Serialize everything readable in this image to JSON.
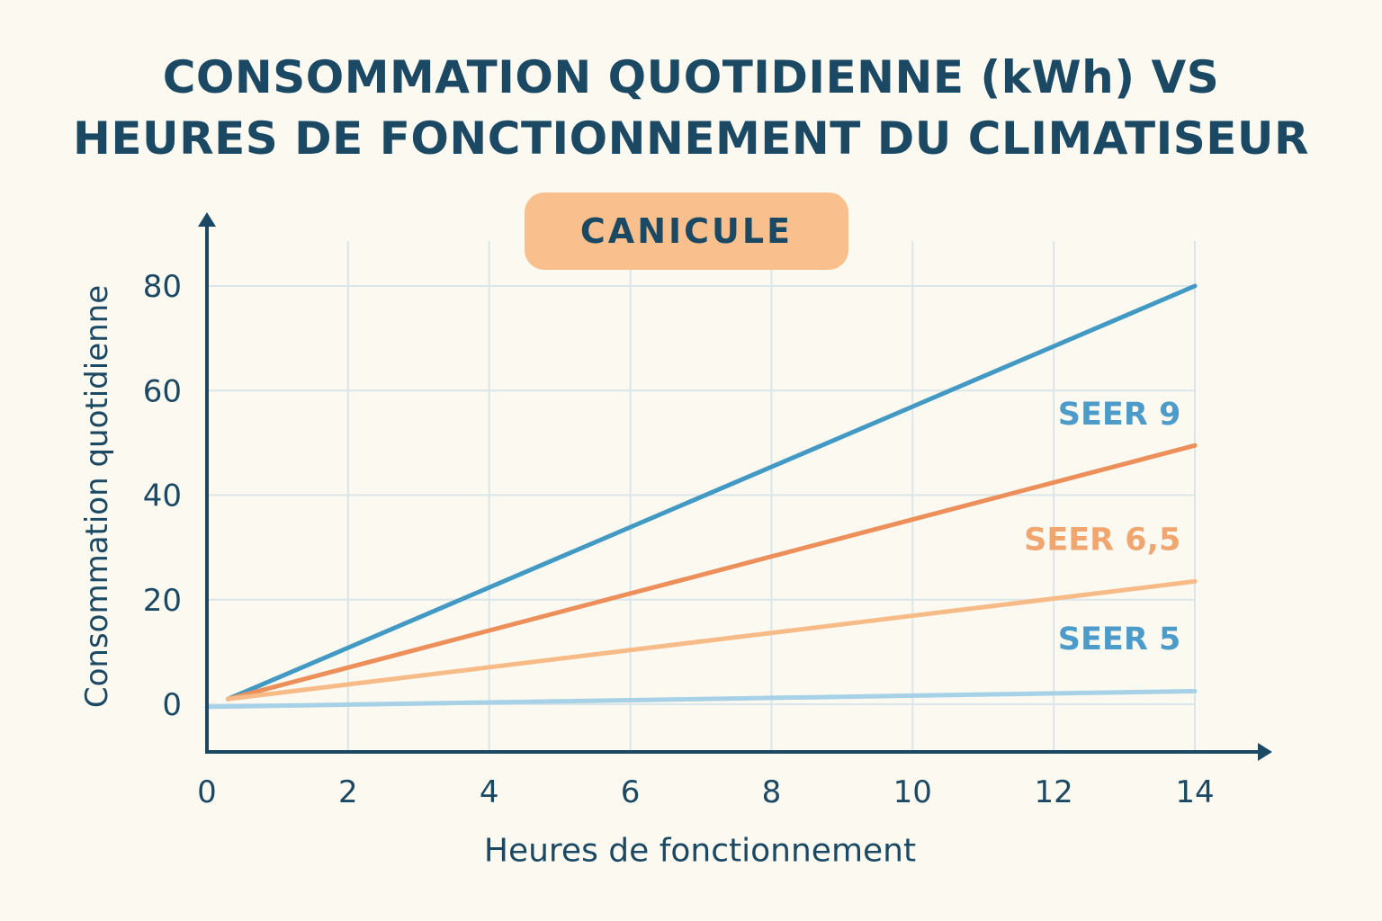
{
  "title": {
    "line1": "CONSOMMATION QUOTIDIENNE (kWh) VS",
    "line2": "HEURES DE FONCTIONNEMENT DU CLIMATISEUR"
  },
  "badge": "CANICULE",
  "colors": {
    "background": "#fcf9f0",
    "text": "#1b4964",
    "axis": "#1b4964",
    "grid": "#dbe6ea",
    "badge": "#f9c08d"
  },
  "chart_data": {
    "type": "line",
    "xlabel": "Heures de fonctionnement",
    "ylabel": "Consommation quotidienne",
    "x_ticks": [
      0,
      2,
      4,
      6,
      8,
      10,
      12,
      14
    ],
    "y_ticks": [
      0,
      20,
      40,
      60,
      80
    ],
    "xlim": [
      0,
      14
    ],
    "ylim": [
      -9,
      92
    ],
    "grid": true,
    "series": [
      {
        "color": "#4199c4",
        "x": [
          0.3,
          14
        ],
        "y": [
          1,
          80
        ]
      },
      {
        "color": "#ec8f5a",
        "x": [
          0.3,
          14
        ],
        "y": [
          1,
          49.5
        ]
      },
      {
        "color": "#f7bb87",
        "x": [
          0.3,
          14
        ],
        "y": [
          1,
          23.5
        ]
      },
      {
        "color": "#a6d1e6",
        "x": [
          0,
          14
        ],
        "y": [
          -0.5,
          2.5
        ]
      }
    ],
    "annotations": [
      {
        "text": "SEER 9",
        "color": "#4d9bc8",
        "x": 13.8,
        "y": 53.5
      },
      {
        "text": "SEER 6,5",
        "color": "#f2a66f",
        "x": 13.8,
        "y": 29.5
      },
      {
        "text": "SEER 5",
        "color": "#4d9bc8",
        "x": 13.8,
        "y": 10.5
      }
    ]
  }
}
